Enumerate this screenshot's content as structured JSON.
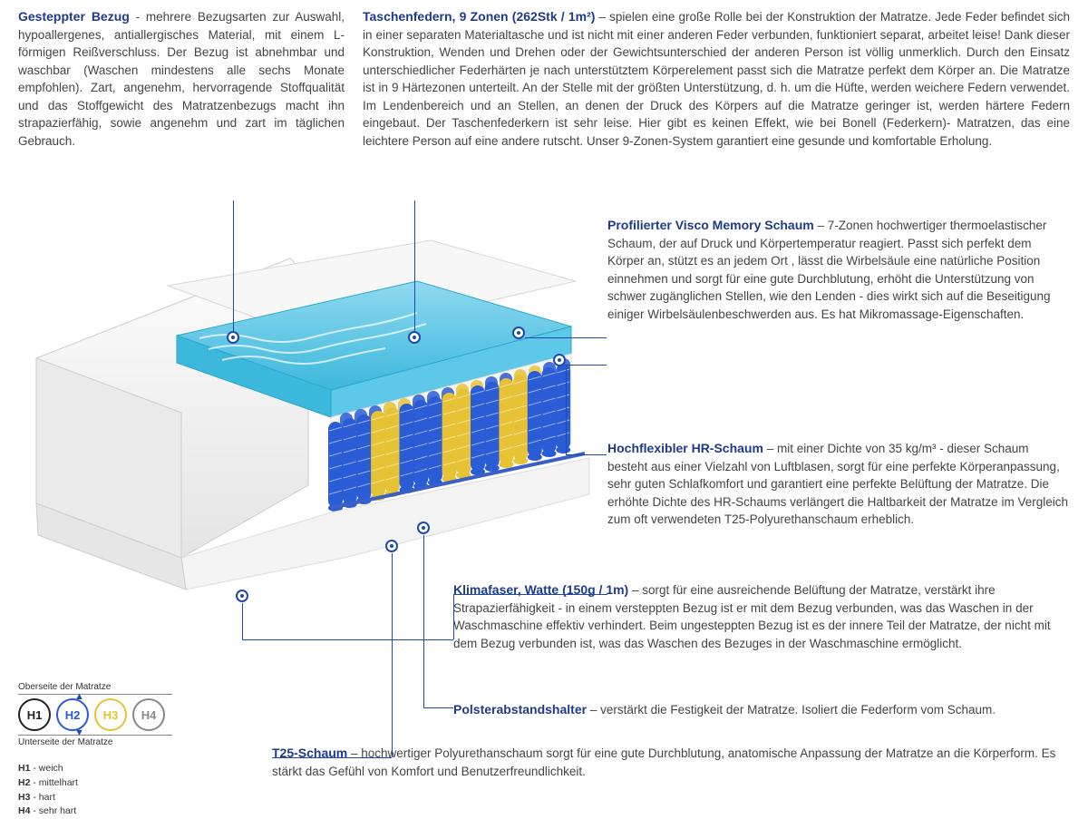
{
  "topLeft": {
    "title": "Gesteppter Bezug",
    "text": " - mehrere Bezugsarten zur Auswahl, hypoallergenes, antiallergisches Material, mit einem L-förmigen Reißverschluss. Der Bezug ist abnehmbar und waschbar (Waschen mindestens alle sechs Monate empfohlen). Zart, angenehm, hervorragende Stoffqualität und das Stoffgewicht des Matratzenbezugs macht ihn strapazierfähig, sowie angenehm und zart im täglichen Gebrauch."
  },
  "topRight": {
    "title": "Taschenfedern, 9 Zonen (262Stk / 1m²)",
    "text": " – spielen eine große Rolle bei der Konstruktion der Matratze. Jede Feder befindet sich in einer separaten Materialtasche und ist nicht mit einer anderen Feder verbunden, funktioniert separat, arbeitet leise! Dank dieser Konstruktion, Wenden und Drehen oder der Gewichtsunterschied der anderen Person ist völlig unmerklich. Durch den Einsatz unterschiedlicher Federhärten je nach unterstütztem Körperelement passt sich die Matratze perfekt dem Körper an. Die Matratze ist in 9 Härtezonen unterteilt. An der Stelle mit der größten Unterstützung, d. h. um die Hüfte, werden weichere Federn verwendet. Im Lendenbereich und an Stellen, an denen der Druck des Körpers auf die Matratze geringer ist, werden härtere Federn eingebaut. Der Taschenfederkern ist sehr leise. Hier gibt es keinen Effekt, wie bei Bonell (Federkern)- Matratzen, das eine leichtere Person auf eine andere rutscht. Unser 9-Zonen-System garantiert eine gesunde und komfortable Erholung."
  },
  "callouts": {
    "visco": {
      "title": "Profilierter Visco Memory Schaum",
      "text": " – 7-Zonen hochwertiger thermoelastischer Schaum, der auf Druck und Körpertemperatur reagiert. Passt sich perfekt dem Körper an, stützt es an jedem Ort , lässt die Wirbelsäule eine natürliche Position einnehmen und sorgt für eine gute Durchblutung, erhöht die Unterstützung von schwer zugänglichen Stellen, wie den Lenden - dies wirkt sich auf die Beseitigung einiger Wirbelsäulenbeschwerden aus. Es hat Mikromassage-Eigenschaften."
    },
    "hr": {
      "title": "Hochflexibler HR-Schaum",
      "text": " – mit einer Dichte von 35 kg/m³ - dieser Schaum besteht aus einer Vielzahl von Luftblasen, sorgt für eine perfekte Körperanpassung, sehr guten Schlafkomfort und garantiert eine perfekte Belüftung der Matratze. Die erhöhte Dichte des HR-Schaums verlängert die Haltbarkeit der Matratze im Vergleich zum oft verwendeten T25-Polyurethanschaum erheblich."
    },
    "klima": {
      "title": "Klimafaser, Watte (150g / 1m)",
      "text": " – sorgt für eine ausreichende Belüftung der Matratze, verstärkt ihre Strapazierfähigkeit - in einem versteppten Bezug ist er mit dem Bezug verbunden, was das Waschen in der Waschmaschine effektiv verhindert. Beim ungesteppten Bezug ist es der innere Teil der Matratze, der nicht mit dem Bezug verbunden ist, was das Waschen des Bezuges in der Waschmaschine ermöglicht."
    },
    "polster": {
      "title": "Polsterabstandshalter",
      "text": " – verstärkt die Festigkeit der Matratze. Isoliert die Federform vom Schaum."
    },
    "t25": {
      "title": "T25-Schaum",
      "text": " – hochwertiger Polyurethanschaum sorgt für eine gute Durchblutung, anatomische Anpassung der Matratze an die Körperform. Es stärkt das Gefühl von Komfort und Benutzerfreundlichkeit."
    }
  },
  "legend": {
    "top": "Oberseite der Matratze",
    "bottom": "Unterseite der Matratze",
    "circles": [
      {
        "label": "H1",
        "color": "#222222"
      },
      {
        "label": "H2",
        "color": "#2a5cd6"
      },
      {
        "label": "H3",
        "color": "#e6c235"
      },
      {
        "label": "H4",
        "color": "#888888"
      }
    ],
    "list": [
      {
        "k": "H1",
        "v": " - weich"
      },
      {
        "k": "H2",
        "v": " - mittelhart"
      },
      {
        "k": "H3",
        "v": " - hart"
      },
      {
        "k": "H4",
        "v": " - sehr hart"
      }
    ]
  },
  "colors": {
    "title": "#1e3a8a",
    "spring_blue": "#2a5cd6",
    "spring_yellow": "#e6c235",
    "foam_cyan": "#5ec8e8"
  }
}
